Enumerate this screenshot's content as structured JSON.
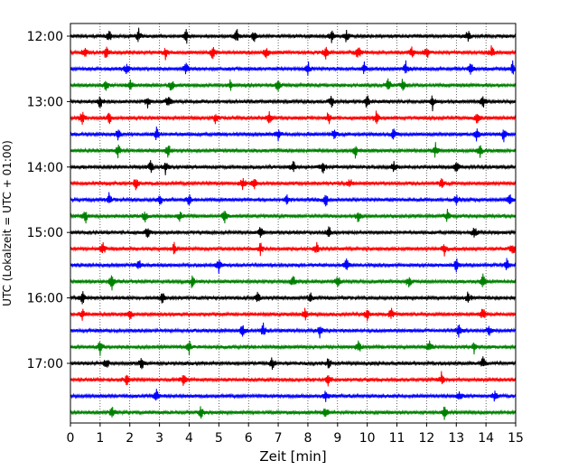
{
  "chart_data": {
    "type": "line",
    "subtype": "helicorder",
    "xlabel": "Zeit  [min]",
    "ylabel": "UTC (Lokalzeit = UTC + 01:00)",
    "xlim": [
      0,
      15
    ],
    "x_ticks": [
      "0",
      "1",
      "2",
      "3",
      "4",
      "5",
      "6",
      "7",
      "8",
      "9",
      "10",
      "11",
      "12",
      "13",
      "14",
      "15"
    ],
    "grid": "vertical dotted lines at each minute",
    "row_interval_minutes": 15,
    "row_count": 24,
    "start_time": "12:00",
    "y_tick_labels": [
      "12:00",
      "13:00",
      "14:00",
      "15:00",
      "16:00",
      "17:00"
    ],
    "y_tick_rows": [
      0,
      4,
      8,
      12,
      16,
      20
    ],
    "trace_colors": [
      "#000000",
      "#ff0000",
      "#0000ff",
      "#008000"
    ],
    "events": [
      {
        "row": 0,
        "minutes": [
          1.3,
          2.3,
          3.9,
          5.6,
          6.2,
          8.8,
          9.3,
          13.4
        ]
      },
      {
        "row": 1,
        "minutes": [
          0.5,
          1.2,
          3.2,
          4.8,
          6.6,
          8.6,
          9.7,
          11.5,
          12.0,
          14.2
        ]
      },
      {
        "row": 2,
        "minutes": [
          1.9,
          3.9,
          8.0,
          9.9,
          11.3,
          13.5,
          14.9
        ]
      },
      {
        "row": 3,
        "minutes": [
          1.2,
          2.0,
          3.4,
          5.4,
          7.0,
          10.7,
          11.2
        ]
      },
      {
        "row": 4,
        "minutes": [
          1.0,
          2.6,
          3.3,
          8.8,
          10.0,
          12.2,
          13.9
        ]
      },
      {
        "row": 5,
        "minutes": [
          0.4,
          1.3,
          4.9,
          6.7,
          8.7,
          10.3,
          13.7
        ]
      },
      {
        "row": 6,
        "minutes": [
          1.6,
          2.9,
          7.0,
          8.9,
          10.9,
          13.7,
          14.6
        ]
      },
      {
        "row": 7,
        "minutes": [
          1.6,
          3.3,
          9.6,
          12.3,
          13.8
        ]
      },
      {
        "row": 8,
        "minutes": [
          2.7,
          3.2,
          7.5,
          8.5,
          10.9,
          13.0
        ]
      },
      {
        "row": 9,
        "minutes": [
          2.2,
          5.8,
          6.2,
          9.4,
          12.5
        ]
      },
      {
        "row": 10,
        "minutes": [
          1.3,
          3.0,
          4.0,
          7.3,
          8.6,
          13.0,
          14.8
        ]
      },
      {
        "row": 11,
        "minutes": [
          0.5,
          2.5,
          3.7,
          5.2,
          9.7,
          12.7
        ]
      },
      {
        "row": 12,
        "minutes": [
          2.6,
          6.4,
          8.7,
          13.6
        ]
      },
      {
        "row": 13,
        "minutes": [
          1.1,
          3.5,
          6.4,
          8.3,
          12.6,
          14.9
        ]
      },
      {
        "row": 14,
        "minutes": [
          2.3,
          5.0,
          9.3,
          13.0,
          14.7
        ]
      },
      {
        "row": 15,
        "minutes": [
          1.4,
          4.1,
          7.5,
          9.0,
          11.4,
          13.9
        ]
      },
      {
        "row": 16,
        "minutes": [
          0.4,
          3.1,
          6.3,
          8.1,
          13.4
        ]
      },
      {
        "row": 17,
        "minutes": [
          0.4,
          2.0,
          7.9,
          10.0,
          10.8,
          13.9
        ]
      },
      {
        "row": 18,
        "minutes": [
          5.8,
          6.5,
          8.4,
          13.1,
          14.1
        ]
      },
      {
        "row": 19,
        "minutes": [
          1.0,
          4.0,
          9.7,
          12.1,
          13.6
        ]
      },
      {
        "row": 20,
        "minutes": [
          1.2,
          2.4,
          6.8,
          8.7,
          13.9
        ]
      },
      {
        "row": 21,
        "minutes": [
          1.9,
          3.8,
          8.7,
          12.5
        ]
      },
      {
        "row": 22,
        "minutes": [
          2.9,
          8.6,
          13.1,
          14.3
        ]
      },
      {
        "row": 23,
        "minutes": [
          1.4,
          4.4,
          8.6,
          12.6
        ]
      }
    ]
  }
}
